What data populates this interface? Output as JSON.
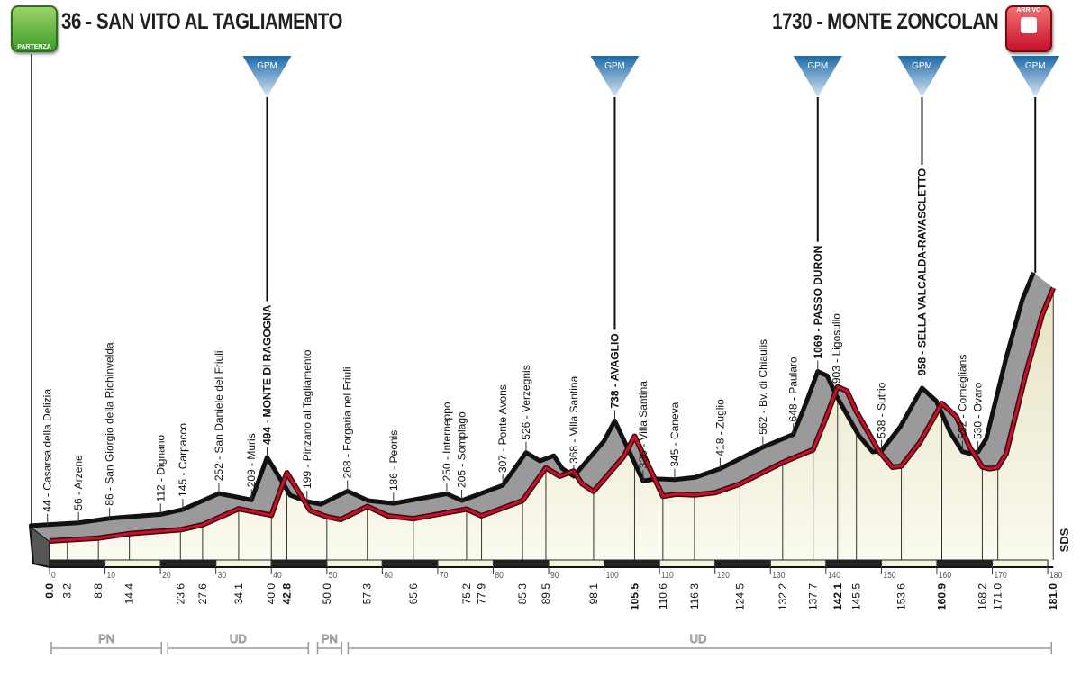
{
  "header": {
    "start": {
      "elevation": "36",
      "name": "SAN VITO AL TAGLIAMENTO",
      "badge": "PARTENZA",
      "color": "#3f9b2a"
    },
    "finish": {
      "elevation": "1730",
      "name": "MONTE ZONCOLAN",
      "badge": "ARRIVO",
      "color": "#c8102e"
    }
  },
  "gpm_label": "GPM",
  "watermark": "SDS",
  "chart_data": {
    "type": "area",
    "xlabel": "",
    "ylabel": "",
    "xlim": [
      0,
      181
    ],
    "x_ticks": [
      0,
      10,
      20,
      30,
      40,
      50,
      60,
      70,
      80,
      90,
      100,
      110,
      120,
      130,
      140,
      150,
      160,
      170,
      180
    ],
    "line_colors": {
      "front": "#c8102e",
      "back": "#111111",
      "band": "#9a9a9c",
      "fill": "#f4f3dc"
    },
    "waypoints": [
      {
        "km": 0.0,
        "elevation": 36,
        "name": "",
        "climb": false,
        "bold_km": true
      },
      {
        "km": 3.2,
        "elevation": 44,
        "name": "Casarsa della Delizia",
        "climb": false
      },
      {
        "km": 8.8,
        "elevation": 56,
        "name": "Arzene",
        "climb": false
      },
      {
        "km": 14.4,
        "elevation": 86,
        "name": "San Giorgio della Richinvelda",
        "climb": false
      },
      {
        "km": 23.6,
        "elevation": 112,
        "name": "Dignano",
        "climb": false
      },
      {
        "km": 27.6,
        "elevation": 145,
        "name": "Carpacco",
        "climb": false
      },
      {
        "km": 34.1,
        "elevation": 252,
        "name": "San Daniele del Friuli",
        "climb": false
      },
      {
        "km": 40.0,
        "elevation": 209,
        "name": "Muris",
        "climb": false
      },
      {
        "km": 42.8,
        "elevation": 494,
        "name": "MONTE DI RAGOGNA",
        "climb": true
      },
      {
        "km": 50.0,
        "elevation": 199,
        "name": "Pinzano al Tagliamento",
        "climb": false
      },
      {
        "km": 57.3,
        "elevation": 268,
        "name": "Forgaria nel Friuli",
        "climb": false
      },
      {
        "km": 65.6,
        "elevation": 186,
        "name": "Peonis",
        "climb": false
      },
      {
        "km": 75.2,
        "elevation": 250,
        "name": "Interneppo",
        "climb": false
      },
      {
        "km": 77.9,
        "elevation": 205,
        "name": "Somplago",
        "climb": false
      },
      {
        "km": 85.3,
        "elevation": 307,
        "name": "Ponte Avons",
        "climb": false
      },
      {
        "km": 89.5,
        "elevation": 526,
        "name": "Verzegnis",
        "climb": false
      },
      {
        "km": 98.1,
        "elevation": 368,
        "name": "Villa Santina",
        "climb": false
      },
      {
        "km": 105.5,
        "elevation": 738,
        "name": "AVAGLIO",
        "climb": true
      },
      {
        "km": 110.6,
        "elevation": 336,
        "name": "Villa Santina",
        "climb": false
      },
      {
        "km": 116.3,
        "elevation": 345,
        "name": "Caneva",
        "climb": false
      },
      {
        "km": 124.5,
        "elevation": 418,
        "name": "Zuglio",
        "climb": false
      },
      {
        "km": 132.2,
        "elevation": 562,
        "name": "Bv. di Chiaulis",
        "climb": false
      },
      {
        "km": 137.7,
        "elevation": 648,
        "name": "Paularo",
        "climb": false
      },
      {
        "km": 142.1,
        "elevation": 1069,
        "name": "PASSO DURON",
        "climb": true
      },
      {
        "km": 145.5,
        "elevation": 903,
        "name": "Ligosullo",
        "climb": false
      },
      {
        "km": 153.6,
        "elevation": 538,
        "name": "Sutrio",
        "climb": false
      },
      {
        "km": 160.9,
        "elevation": 958,
        "name": "SELLA VALCALDA-RAVASCLETTO",
        "climb": true
      },
      {
        "km": 168.2,
        "elevation": 532,
        "name": "Comeglians",
        "climb": false
      },
      {
        "km": 171.0,
        "elevation": 530,
        "name": "Ovaro",
        "climb": false
      },
      {
        "km": 181.0,
        "elevation": 1730,
        "name": "",
        "climb": true,
        "bold_km": true
      }
    ],
    "profile_extra": [
      {
        "km": 47,
        "elevation": 240
      },
      {
        "km": 52.5,
        "elevation": 180
      },
      {
        "km": 61,
        "elevation": 205
      },
      {
        "km": 80.5,
        "elevation": 240
      },
      {
        "km": 92,
        "elevation": 470
      },
      {
        "km": 94.5,
        "elevation": 505
      },
      {
        "km": 96,
        "elevation": 420
      },
      {
        "km": 103.5,
        "elevation": 600
      },
      {
        "km": 113,
        "elevation": 350
      },
      {
        "km": 120,
        "elevation": 360
      },
      {
        "km": 140,
        "elevation": 860
      },
      {
        "km": 143.8,
        "elevation": 1040
      },
      {
        "km": 149.5,
        "elevation": 640
      },
      {
        "km": 152,
        "elevation": 530
      },
      {
        "km": 157,
        "elevation": 700
      },
      {
        "km": 163.5,
        "elevation": 870
      },
      {
        "km": 166,
        "elevation": 660
      },
      {
        "km": 169.5,
        "elevation": 520
      },
      {
        "km": 172.5,
        "elevation": 620
      },
      {
        "km": 176,
        "elevation": 1150
      },
      {
        "km": 179,
        "elevation": 1550
      }
    ],
    "provinces": [
      {
        "label": "PN",
        "from_km": 0,
        "to_km": 20.5
      },
      {
        "label": "UD",
        "from_km": 21,
        "to_km": 47
      },
      {
        "label": "PN",
        "from_km": 48,
        "to_km": 53
      },
      {
        "label": "UD",
        "from_km": 53.5,
        "to_km": 181
      }
    ]
  }
}
